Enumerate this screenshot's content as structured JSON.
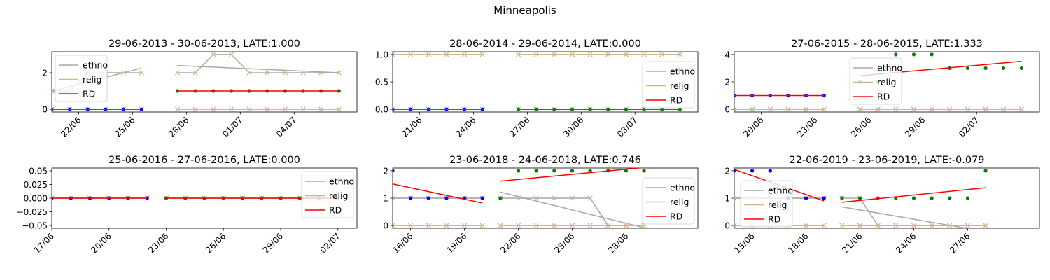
{
  "figure": {
    "title": "Minneapolis"
  },
  "legend_labels": {
    "ethno": "ethno",
    "relig": "relig",
    "rd": "RD"
  },
  "colors": {
    "ethno": "#a9a9a9",
    "relig": "#d2b48c",
    "rd": "#ff0000",
    "pre": "#0000ff",
    "post": "#008000",
    "marker": "#d2b48c"
  },
  "chart_data": [
    {
      "type": "line",
      "title": "29-06-2013 - 30-06-2013, LATE:1.000",
      "legend": "upper-left",
      "x_range": [
        0,
        17
      ],
      "ylim": [
        -0.15,
        3.15
      ],
      "xticks": [
        {
          "x": 1.5,
          "label": "22/06"
        },
        {
          "x": 4.5,
          "label": "25/06"
        },
        {
          "x": 7.5,
          "label": "28/06"
        },
        {
          "x": 10.5,
          "label": "01/07"
        },
        {
          "x": 13.5,
          "label": "04/07"
        }
      ],
      "yticks": [
        {
          "v": 0,
          "label": "0"
        },
        {
          "v": 2,
          "label": "2"
        }
      ],
      "dots_pre": {
        "x": [
          0,
          1,
          2,
          3,
          4,
          5
        ],
        "y": [
          0,
          0,
          0,
          0,
          0,
          0
        ]
      },
      "dots_post": {
        "x": [
          7,
          8,
          9,
          10,
          11,
          12,
          13,
          14,
          15,
          16
        ],
        "y": [
          1,
          1,
          1,
          1,
          1,
          1,
          1,
          1,
          1,
          1
        ]
      },
      "ethno_x": [
        [
          0,
          1,
          2,
          3,
          4,
          5
        ],
        [
          7,
          8,
          9,
          10,
          11,
          12,
          13,
          14,
          15,
          16
        ]
      ],
      "ethno_y": [
        [
          1,
          1,
          2,
          2,
          2,
          2
        ],
        [
          2,
          2,
          3,
          3,
          2,
          2,
          2,
          2,
          2,
          2
        ]
      ],
      "relig_y": [
        [
          0,
          0,
          0,
          0,
          0,
          0
        ],
        [
          0,
          0,
          0,
          0,
          0,
          0,
          0,
          0,
          0,
          0
        ]
      ],
      "ethno_fit": [
        [
          0,
          1.0,
          5,
          2.25
        ],
        [
          7,
          2.4,
          16,
          2.0
        ]
      ],
      "relig_fit": [
        [
          0,
          0,
          5,
          0
        ],
        [
          7,
          0,
          16,
          0
        ]
      ],
      "rd_fit": [
        [
          0,
          0,
          5,
          0
        ],
        [
          7,
          1,
          16,
          1
        ]
      ]
    },
    {
      "type": "line",
      "title": "28-06-2014 - 29-06-2014, LATE:0.000",
      "legend": "center-right",
      "x_range": [
        0,
        17
      ],
      "ylim": [
        -0.05,
        1.05
      ],
      "xticks": [
        {
          "x": 1.5,
          "label": "21/06"
        },
        {
          "x": 4.5,
          "label": "24/06"
        },
        {
          "x": 7.5,
          "label": "27/06"
        },
        {
          "x": 10.5,
          "label": "30/06"
        },
        {
          "x": 13.5,
          "label": "03/07"
        }
      ],
      "yticks": [
        {
          "v": 0,
          "label": "0.0"
        },
        {
          "v": 0.5,
          "label": "0.5"
        },
        {
          "v": 1,
          "label": "1.0"
        }
      ],
      "dots_pre": {
        "x": [
          0,
          1,
          2,
          3,
          4,
          5
        ],
        "y": [
          0,
          0,
          0,
          0,
          0,
          0
        ]
      },
      "dots_post": {
        "x": [
          7,
          8,
          9,
          10,
          11,
          12,
          13,
          14,
          15,
          16
        ],
        "y": [
          0,
          0,
          0,
          0,
          0,
          0,
          0,
          0,
          0,
          0
        ]
      },
      "ethno_x": [
        [
          0,
          1,
          2,
          3,
          4,
          5
        ],
        [
          7,
          8,
          9,
          10,
          11,
          12,
          13,
          14,
          15,
          16
        ]
      ],
      "ethno_y": [
        [
          0,
          0,
          0,
          0,
          0,
          0
        ],
        [
          0,
          0,
          0,
          0,
          0,
          0,
          0,
          0,
          0,
          0
        ]
      ],
      "relig_y": [
        [
          1,
          1,
          1,
          1,
          1,
          1
        ],
        [
          1,
          1,
          1,
          1,
          1,
          1,
          1,
          1,
          1,
          1
        ]
      ],
      "ethno_fit": [
        [
          0,
          0,
          5,
          0
        ],
        [
          7,
          0,
          16,
          0
        ]
      ],
      "relig_fit": [
        [
          0,
          1,
          5,
          1
        ],
        [
          7,
          1,
          16,
          1
        ]
      ],
      "rd_fit": [
        [
          0,
          0,
          5,
          0
        ],
        [
          7,
          0,
          16,
          0
        ]
      ]
    },
    {
      "type": "line",
      "title": "27-06-2015 - 28-06-2015, LATE:1.333",
      "legend": "upper-center",
      "x_range": [
        0,
        17
      ],
      "ylim": [
        -0.2,
        4.2
      ],
      "xticks": [
        {
          "x": 1.5,
          "label": "20/06"
        },
        {
          "x": 4.5,
          "label": "23/06"
        },
        {
          "x": 7.5,
          "label": "26/06"
        },
        {
          "x": 10.5,
          "label": "29/06"
        },
        {
          "x": 13.5,
          "label": "02/07"
        }
      ],
      "yticks": [
        {
          "v": 0,
          "label": "0"
        },
        {
          "v": 2,
          "label": "2"
        },
        {
          "v": 4,
          "label": "4"
        }
      ],
      "dots_pre": {
        "x": [
          0,
          1,
          2,
          3,
          4,
          5
        ],
        "y": [
          1,
          1,
          1,
          1,
          1,
          1
        ]
      },
      "dots_post": {
        "x": [
          7,
          8,
          9,
          10,
          11,
          12,
          13,
          14,
          15,
          16
        ],
        "y": [
          2,
          2,
          4,
          4,
          4,
          3,
          3,
          3,
          3,
          3
        ]
      },
      "ethno_x": [
        [
          0,
          1,
          2,
          3,
          4,
          5
        ],
        [
          7,
          8,
          9,
          10,
          11,
          12,
          13,
          14,
          15,
          16
        ]
      ],
      "ethno_y": [
        [
          0,
          0,
          0,
          0,
          0,
          0
        ],
        [
          0,
          0,
          0,
          0,
          0,
          0,
          0,
          0,
          0,
          0
        ]
      ],
      "relig_y": [
        [
          0,
          0,
          0,
          0,
          0,
          0
        ],
        [
          0,
          0,
          0,
          0,
          0,
          0,
          0,
          0,
          0,
          0
        ]
      ],
      "ethno_fit": [
        [
          0,
          0,
          5,
          0
        ],
        [
          7,
          0,
          16,
          0
        ]
      ],
      "relig_fit": [
        [
          0,
          0,
          5,
          0
        ],
        [
          7,
          0,
          16,
          0
        ]
      ],
      "rd_fit": [
        [
          0,
          1,
          5,
          1
        ],
        [
          7,
          2.45,
          16,
          3.5
        ]
      ]
    },
    {
      "type": "line",
      "title": "25-06-2016 - 27-06-2016, LATE:0.000",
      "legend": "upper-right",
      "x_range": [
        0,
        16
      ],
      "ylim": [
        -0.055,
        0.055
      ],
      "xticks": [
        {
          "x": 0,
          "label": "17/06"
        },
        {
          "x": 3,
          "label": "20/06"
        },
        {
          "x": 6,
          "label": "23/06"
        },
        {
          "x": 9,
          "label": "26/06"
        },
        {
          "x": 12,
          "label": "29/06"
        },
        {
          "x": 15,
          "label": "02/07"
        }
      ],
      "yticks": [
        {
          "v": -0.05,
          "label": "−0.05"
        },
        {
          "v": -0.025,
          "label": "−0.025"
        },
        {
          "v": 0,
          "label": "0.000"
        },
        {
          "v": 0.025,
          "label": "0.025"
        },
        {
          "v": 0.05,
          "label": "0.05"
        }
      ],
      "dots_pre": {
        "x": [
          0,
          1,
          2,
          3,
          4,
          5
        ],
        "y": [
          0,
          0,
          0,
          0,
          0,
          0
        ]
      },
      "dots_post": {
        "x": [
          6,
          7,
          8,
          9,
          10,
          11,
          12,
          13,
          14,
          15
        ],
        "y": [
          0,
          0,
          0,
          0,
          0,
          0,
          0,
          0,
          0,
          0
        ]
      },
      "ethno_x": [
        [
          0,
          1,
          2,
          3,
          4,
          5
        ],
        [
          6,
          7,
          8,
          9,
          10,
          11,
          12,
          13,
          14,
          15
        ]
      ],
      "ethno_y": [
        [
          0,
          0,
          0,
          0,
          0,
          0
        ],
        [
          0,
          0,
          0,
          0,
          0,
          0,
          0,
          0,
          0,
          0
        ]
      ],
      "relig_y": [
        [
          0,
          0,
          0,
          0,
          0,
          0
        ],
        [
          0,
          0,
          0,
          0,
          0,
          0,
          0,
          0,
          0,
          0
        ]
      ],
      "ethno_fit": [
        [
          0,
          0,
          5,
          0
        ],
        [
          6,
          0,
          15,
          0
        ]
      ],
      "relig_fit": [
        [
          0,
          0,
          5,
          0
        ],
        [
          6,
          0,
          15,
          0
        ]
      ],
      "rd_fit": [
        [
          0,
          0,
          5,
          0
        ],
        [
          6,
          0,
          15,
          0
        ]
      ]
    },
    {
      "type": "line",
      "title": "23-06-2018 - 24-06-2018, LATE:0.746",
      "legend": "center-right",
      "x_range": [
        0,
        17
      ],
      "ylim": [
        -0.1,
        2.1
      ],
      "xticks": [
        {
          "x": 1,
          "label": "16/06"
        },
        {
          "x": 4,
          "label": "19/06"
        },
        {
          "x": 7,
          "label": "22/06"
        },
        {
          "x": 10,
          "label": "25/06"
        },
        {
          "x": 13,
          "label": "28/06"
        }
      ],
      "yticks": [
        {
          "v": 0,
          "label": "0"
        },
        {
          "v": 1,
          "label": "1"
        },
        {
          "v": 2,
          "label": "2"
        }
      ],
      "dots_pre": {
        "x": [
          0,
          1,
          2,
          3,
          4,
          5
        ],
        "y": [
          2,
          1,
          1,
          1,
          1,
          1
        ]
      },
      "dots_post": {
        "x": [
          6,
          7,
          8,
          9,
          10,
          11,
          12,
          13,
          14
        ],
        "y": [
          1,
          2,
          2,
          2,
          2,
          2,
          2,
          2,
          2
        ]
      },
      "ethno_x": [
        [
          0,
          1,
          2,
          3,
          4,
          5
        ],
        [
          6,
          7,
          8,
          9,
          10,
          11,
          12,
          13,
          14
        ]
      ],
      "ethno_y": [
        [
          1,
          1,
          1,
          1,
          1,
          1
        ],
        [
          1,
          1,
          1,
          1,
          1,
          1,
          0,
          0,
          0
        ]
      ],
      "relig_y": [
        [
          0,
          0,
          0,
          0,
          0,
          0
        ],
        [
          0,
          0,
          0,
          0,
          0,
          0,
          0,
          0,
          0
        ]
      ],
      "ethno_fit": [
        [
          0,
          1,
          5,
          1
        ],
        [
          6,
          1.22,
          14,
          -0.08
        ]
      ],
      "relig_fit": [
        [
          0,
          0,
          5,
          0
        ],
        [
          6,
          0,
          14,
          0
        ]
      ],
      "rd_fit": [
        [
          0,
          1.52,
          5,
          0.82
        ],
        [
          6,
          1.62,
          14,
          2.12
        ]
      ]
    },
    {
      "type": "line",
      "title": "22-06-2019 - 23-06-2019, LATE:-0.079",
      "legend": "center-left",
      "x_range": [
        0,
        17
      ],
      "ylim": [
        -0.1,
        2.1
      ],
      "xticks": [
        {
          "x": 1,
          "label": "15/06"
        },
        {
          "x": 4,
          "label": "18/06"
        },
        {
          "x": 7,
          "label": "21/06"
        },
        {
          "x": 10,
          "label": "24/06"
        },
        {
          "x": 13,
          "label": "27/06"
        }
      ],
      "yticks": [
        {
          "v": 0,
          "label": "0"
        },
        {
          "v": 1,
          "label": "1"
        },
        {
          "v": 2,
          "label": "2"
        }
      ],
      "dots_pre": {
        "x": [
          0,
          1,
          2,
          3,
          4,
          5
        ],
        "y": [
          2,
          2,
          2,
          1,
          1,
          1
        ]
      },
      "dots_post": {
        "x": [
          6,
          7,
          8,
          9,
          10,
          11,
          12,
          13,
          14
        ],
        "y": [
          1,
          1,
          1,
          1,
          1,
          1,
          1,
          1,
          2
        ]
      },
      "ethno_x": [
        [
          0,
          1,
          2,
          3,
          4,
          5
        ],
        [
          6,
          7,
          8,
          9,
          10,
          11,
          12,
          13,
          14
        ]
      ],
      "ethno_y": [
        [
          1,
          1,
          1,
          1,
          1,
          1
        ],
        [
          1,
          1,
          0,
          0,
          0,
          0,
          0,
          0,
          0
        ]
      ],
      "relig_y": [
        [
          0,
          0,
          0,
          0,
          0,
          0
        ],
        [
          0,
          0,
          0,
          0,
          0,
          0,
          0,
          0,
          0
        ]
      ],
      "ethno_fit": [
        [
          0,
          1,
          5,
          1
        ],
        [
          6,
          0.68,
          14,
          -0.22
        ]
      ],
      "relig_fit": [
        [
          0,
          0,
          5,
          0
        ],
        [
          6,
          0,
          14,
          0
        ]
      ],
      "rd_fit": [
        [
          0,
          2.05,
          5,
          0.9
        ],
        [
          6,
          0.85,
          14,
          1.38
        ]
      ]
    }
  ]
}
